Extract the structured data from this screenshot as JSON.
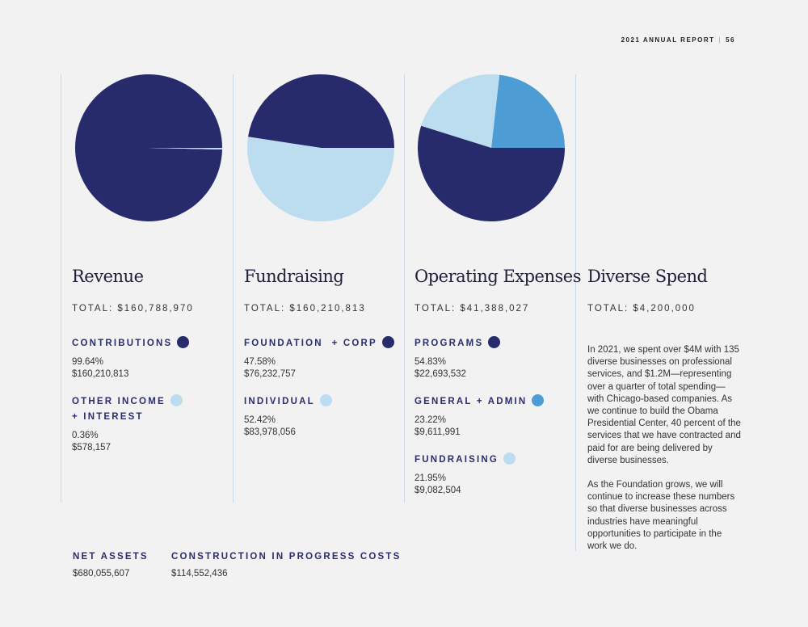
{
  "header": {
    "report": "2021 ANNUAL REPORT",
    "separator": "|",
    "page": "56"
  },
  "colors": {
    "navy": "#272a6b",
    "light_blue": "#bcdcf0",
    "mid_blue": "#4e9cd4"
  },
  "chart_data": [
    {
      "type": "pie",
      "title": "Revenue",
      "total": "TOTAL: $160,788,970",
      "slices": [
        {
          "name": "CONTRIBUTIONS",
          "value": 99.64,
          "amount": "$160,210,813",
          "color": "#272a6b"
        },
        {
          "name": "OTHER INCOME + INTEREST",
          "value": 0.36,
          "amount": "$578,157",
          "color": "#bcdcf0"
        }
      ]
    },
    {
      "type": "pie",
      "title": "Fundraising",
      "total": "TOTAL: $160,210,813",
      "slices": [
        {
          "name": "FOUNDATION + CORP",
          "value": 47.58,
          "amount": "$76,232,757",
          "color": "#272a6b"
        },
        {
          "name": "INDIVIDUAL",
          "value": 52.42,
          "amount": "$83,978,056",
          "color": "#bcdcf0"
        }
      ]
    },
    {
      "type": "pie",
      "title": "Operating Expenses",
      "total": "TOTAL: $41,388,027",
      "slices": [
        {
          "name": "GENERAL + ADMIN",
          "value": 23.22,
          "amount": "$9,611,991",
          "color": "#4e9cd4"
        },
        {
          "name": "FUNDRAISING",
          "value": 21.95,
          "amount": "$9,082,504",
          "color": "#bcdcf0"
        },
        {
          "name": "PROGRAMS",
          "value": 54.83,
          "amount": "$22,693,532",
          "color": "#272a6b"
        }
      ]
    }
  ],
  "revenue": {
    "title": "Revenue",
    "total": "TOTAL: $160,788,970",
    "categories": [
      {
        "label": "CONTRIBUTIONS",
        "pct": "99.64%",
        "amount": "$160,210,813"
      },
      {
        "label_line1": "OTHER INCOME",
        "label_line2": "+ INTEREST",
        "pct": "0.36%",
        "amount": "$578,157"
      }
    ]
  },
  "fundraising": {
    "title": "Fundraising",
    "total": "TOTAL: $160,210,813",
    "categories": [
      {
        "label": "FOUNDATION  + CORP",
        "pct": "47.58%",
        "amount": "$76,232,757"
      },
      {
        "label": "INDIVIDUAL",
        "pct": "52.42%",
        "amount": "$83,978,056"
      }
    ]
  },
  "operating": {
    "title": "Operating Expenses",
    "total": "TOTAL: $41,388,027",
    "categories": [
      {
        "label": "PROGRAMS",
        "pct": "54.83%",
        "amount": "$22,693,532"
      },
      {
        "label": "GENERAL + ADMIN",
        "pct": "23.22%",
        "amount": "$9,611,991"
      },
      {
        "label": "FUNDRAISING",
        "pct": "21.95%",
        "amount": "$9,082,504"
      }
    ]
  },
  "diverse": {
    "title": "Diverse Spend",
    "total": "TOTAL: $4,200,000",
    "paragraphs": [
      "In 2021, we spent over $4M with 135 diverse businesses on professional services, and $1.2M—representing over a quarter of total spending—with Chicago-based companies. As we continue to build the Obama Presidential Center, 40 percent of the services that we have contracted and paid for are being delivered by diverse businesses.",
      "As the Foundation grows, we will continue to increase these numbers so that diverse businesses across industries have meaningful opportunities to participate in the work we do."
    ]
  },
  "assets": {
    "net_label": "NET ASSETS",
    "net_value": "$680,055,607",
    "construction_label": "CONSTRUCTION IN PROGRESS COSTS",
    "construction_value": "$114,552,436"
  }
}
